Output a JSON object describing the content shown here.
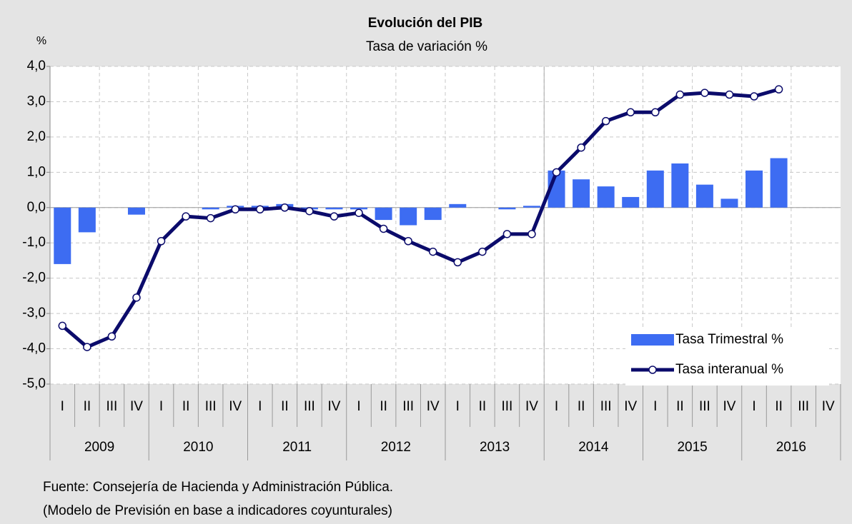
{
  "chart_data": {
    "type": "bar_line",
    "title": "Evolución del PIB",
    "subtitle": "Tasa de variación %",
    "y_axis_label": "%",
    "categories": [
      "I",
      "II",
      "III",
      "IV",
      "I",
      "II",
      "III",
      "IV",
      "I",
      "II",
      "III",
      "IV",
      "I",
      "II",
      "III",
      "IV",
      "I",
      "II",
      "III",
      "IV",
      "I",
      "II",
      "III",
      "IV",
      "I",
      "II",
      "III",
      "IV",
      "I",
      "II",
      "III",
      "IV"
    ],
    "years": [
      "2009",
      "2010",
      "2011",
      "2012",
      "2013",
      "2014",
      "2015",
      "2016"
    ],
    "series": [
      {
        "name": "Tasa Trimestral %",
        "kind": "bar",
        "color": "#3d6cf2",
        "values": [
          -1.6,
          -0.7,
          0.0,
          -0.2,
          0.0,
          0.0,
          -0.05,
          0.05,
          0.05,
          0.1,
          -0.05,
          -0.05,
          -0.05,
          -0.35,
          -0.5,
          -0.35,
          0.1,
          0.0,
          -0.05,
          0.05,
          1.05,
          0.8,
          0.6,
          0.3,
          1.05,
          1.25,
          0.65,
          0.25,
          1.05,
          1.4,
          null,
          null
        ]
      },
      {
        "name": "Tasa interanual %",
        "kind": "line",
        "color": "#0b0b6b",
        "values": [
          -3.35,
          -3.95,
          -3.65,
          -2.55,
          -0.95,
          -0.25,
          -0.3,
          -0.05,
          -0.05,
          0.0,
          -0.1,
          -0.25,
          -0.15,
          -0.6,
          -0.95,
          -1.25,
          -1.55,
          -1.25,
          -0.75,
          -0.75,
          1.0,
          1.7,
          2.45,
          2.7,
          2.7,
          3.2,
          3.25,
          3.2,
          3.15,
          3.35,
          null,
          null
        ]
      }
    ],
    "ylim": [
      -5,
      4
    ],
    "yticks": [
      {
        "value": -5,
        "label": "-5,0"
      },
      {
        "value": -4,
        "label": "-4,0"
      },
      {
        "value": -3,
        "label": "-3,0"
      },
      {
        "value": -2,
        "label": "-2,0"
      },
      {
        "value": -1,
        "label": "-1,0"
      },
      {
        "value": 0,
        "label": "0,0"
      },
      {
        "value": 1,
        "label": "1,0"
      },
      {
        "value": 2,
        "label": "2,0"
      },
      {
        "value": 3,
        "label": "3,0"
      },
      {
        "value": 4,
        "label": "4,0"
      }
    ],
    "grid": true,
    "legend": "lower right",
    "notes": [
      "Fuente: Consejería de Hacienda y Administración Pública.",
      "(Modelo de Previsión en base a indicadores coyunturales)"
    ]
  }
}
